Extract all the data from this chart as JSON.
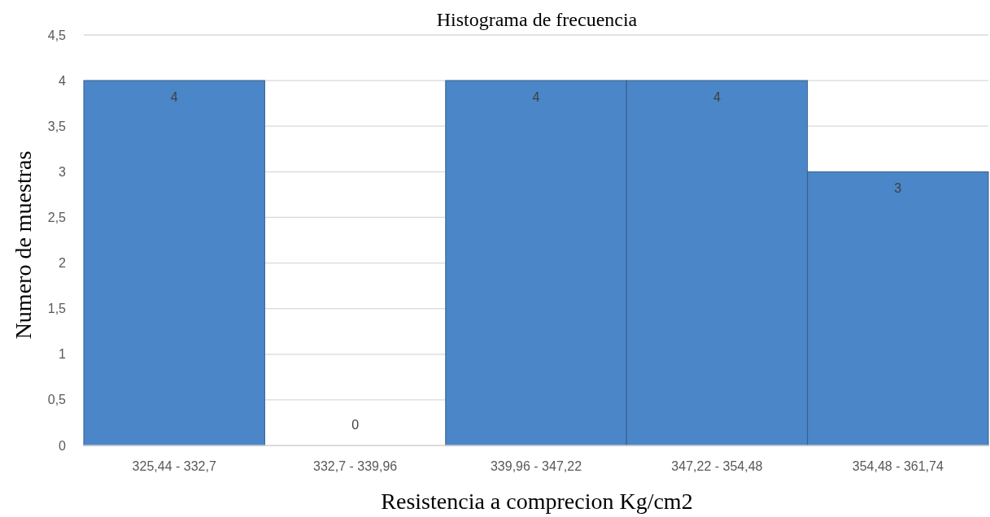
{
  "chart_data": {
    "type": "bar",
    "title": "Histograma de frecuencia",
    "xlabel": "Resistencia a comprecion Kg/cm2",
    "ylabel": "Numero de muestras",
    "categories": [
      "325,44 - 332,7",
      "332,7 - 339,96",
      "339,96 - 347,22",
      "347,22 - 354,48",
      "354,48 - 361,74"
    ],
    "values": [
      4,
      0,
      4,
      4,
      3
    ],
    "color": "#4a86c8",
    "ylim": [
      0,
      4.5
    ],
    "yticks": [
      0,
      {
        "value": 0.5,
        "label": "0,5"
      },
      1,
      {
        "value": 1.5,
        "label": "1,5"
      },
      2,
      {
        "value": 2.5,
        "label": "2,5"
      },
      3,
      {
        "value": 3.5,
        "label": "3,5"
      },
      4,
      {
        "value": 4.5,
        "label": "4,5"
      }
    ],
    "grid": "y",
    "data_labels": true
  }
}
